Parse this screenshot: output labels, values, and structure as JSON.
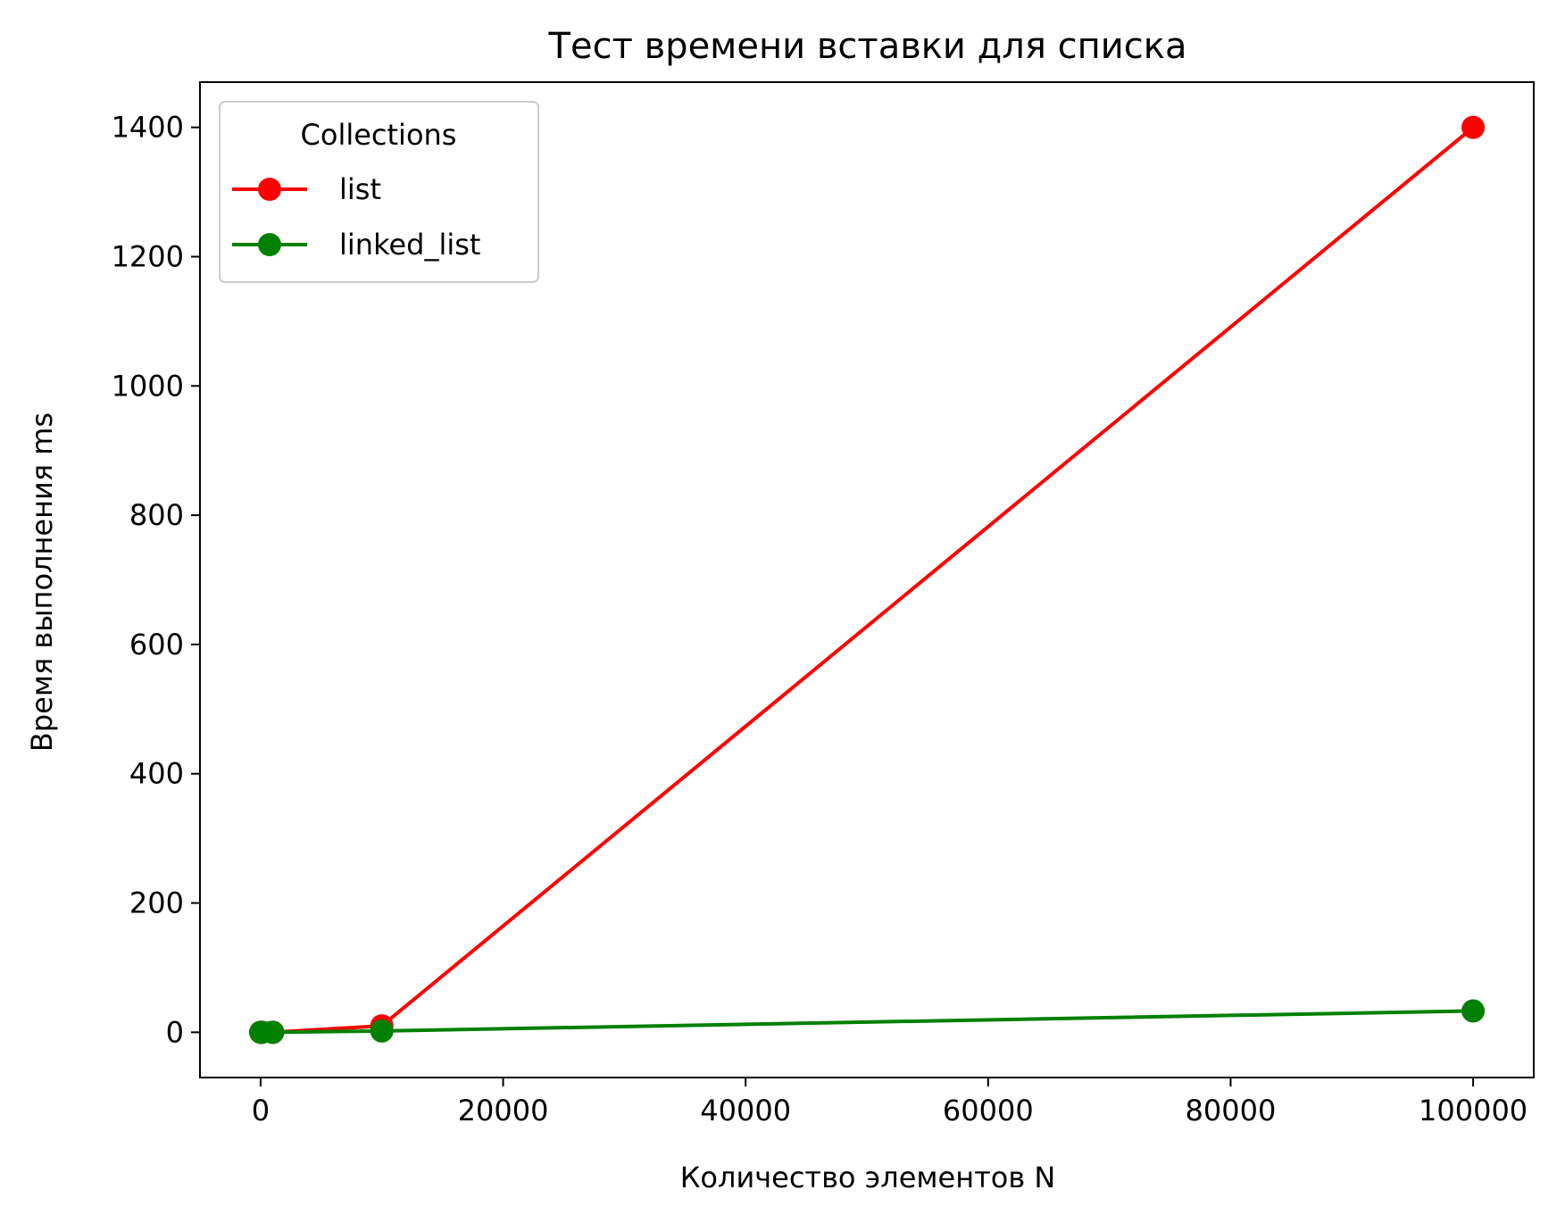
{
  "chart_data": {
    "type": "line",
    "title": "Тест времени вставки для списка",
    "xlabel": "Количество элементов N",
    "ylabel": "Время выполнения ms",
    "xlim": [
      -5000,
      105000
    ],
    "ylim": [
      -70,
      1470
    ],
    "xticks": [
      0,
      20000,
      40000,
      60000,
      80000,
      100000
    ],
    "xtick_labels": [
      "0",
      "20000",
      "40000",
      "60000",
      "80000",
      "100000"
    ],
    "yticks": [
      0,
      200,
      400,
      600,
      800,
      1000,
      1200,
      1400
    ],
    "ytick_labels": [
      "0",
      "200",
      "400",
      "600",
      "800",
      "1000",
      "1200",
      "1400"
    ],
    "grid": false,
    "legend": {
      "title": "Collections",
      "position": "top-left"
    },
    "series": [
      {
        "name": "list",
        "color": "#ff0000",
        "x": [
          10,
          100,
          1000,
          10000,
          100000
        ],
        "y": [
          0,
          0,
          0,
          10,
          1400
        ]
      },
      {
        "name": "linked_list",
        "color": "#008000",
        "x": [
          10,
          100,
          1000,
          10000,
          100000
        ],
        "y": [
          0,
          0,
          0,
          2,
          33
        ]
      }
    ]
  }
}
